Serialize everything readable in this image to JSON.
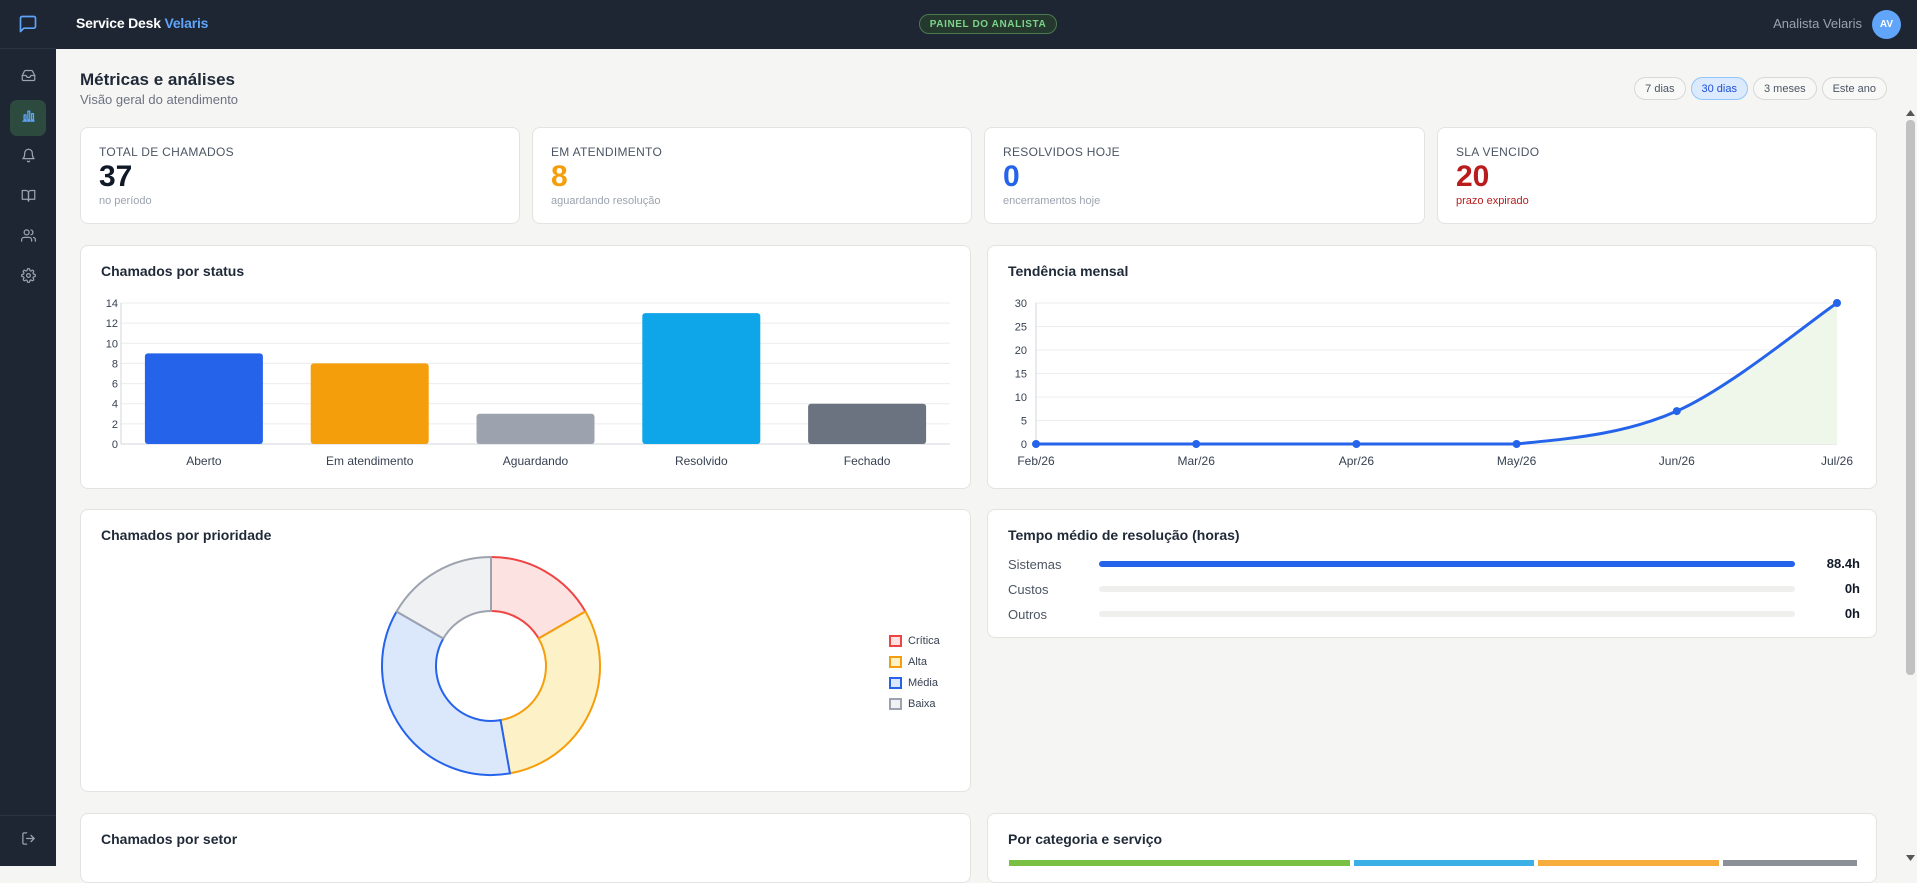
{
  "app": {
    "brand_main": "Service Desk",
    "brand_accent": "Velaris",
    "role_badge": "PAINEL DO ANALISTA",
    "user_name": "Analista Velaris",
    "user_initials": "AV"
  },
  "sidebar": {
    "items": [
      {
        "icon": "inbox-icon"
      },
      {
        "icon": "bar-chart-icon",
        "active": true
      },
      {
        "icon": "bell-icon"
      },
      {
        "icon": "book-icon"
      },
      {
        "icon": "users-icon"
      },
      {
        "icon": "gear-icon"
      }
    ],
    "bottom_icon": "logout-icon"
  },
  "page": {
    "title": "Métricas e análises",
    "subtitle": "Visão geral do atendimento"
  },
  "ranges": [
    {
      "label": "7 dias",
      "active": false
    },
    {
      "label": "30 dias",
      "active": true
    },
    {
      "label": "3 meses",
      "active": false
    },
    {
      "label": "Este ano",
      "active": false
    }
  ],
  "stats": [
    {
      "label": "TOTAL DE CHAMADOS",
      "value": "37",
      "sub": "no período",
      "color": "#111827",
      "sub_color": "#9ca3af"
    },
    {
      "label": "EM ATENDIMENTO",
      "value": "8",
      "sub": "aguardando resolução",
      "color": "#f59e0b",
      "sub_color": "#9ca3af"
    },
    {
      "label": "RESOLVIDOS HOJE",
      "value": "0",
      "sub": "encerramentos hoje",
      "color": "#2563eb",
      "sub_color": "#9ca3af"
    },
    {
      "label": "SLA VENCIDO",
      "value": "20",
      "sub": "prazo expirado",
      "color": "#b91c1c",
      "sub_color": "#b91c1c"
    }
  ],
  "cards": {
    "status_title": "Chamados por status",
    "trend_title": "Tendência mensal",
    "priority_title": "Chamados por prioridade",
    "resolution_title": "Tempo médio de resolução (horas)",
    "sector_title": "Chamados por setor",
    "category_title": "Por categoria e serviço"
  },
  "resolution": [
    {
      "label": "Sistemas",
      "value": "88.4h",
      "fraction": 1.0
    },
    {
      "label": "Custos",
      "value": "0h",
      "fraction": 0
    },
    {
      "label": "Outros",
      "value": "0h",
      "fraction": 0
    }
  ],
  "category_strip_colors": [
    "#7ac143",
    "#3bb0e6",
    "#f6ad3c",
    "#8a8f98"
  ],
  "chart_data": [
    {
      "type": "bar",
      "title": "Chamados por status",
      "categories": [
        "Aberto",
        "Em atendimento",
        "Aguardando",
        "Resolvido",
        "Fechado"
      ],
      "values": [
        9,
        8,
        3,
        13,
        4
      ],
      "colors": [
        "#2563eb",
        "#f59e0b",
        "#9ca3af",
        "#0ea5e9",
        "#6b7280"
      ],
      "yticks": [
        "0",
        "2",
        "4",
        "6",
        "8",
        "10",
        "12",
        "14"
      ],
      "ylim": [
        0,
        14
      ],
      "grid": true
    },
    {
      "type": "line",
      "title": "Tendência mensal",
      "x": [
        "Feb/26",
        "Mar/26",
        "Apr/26",
        "May/26",
        "Jun/26",
        "Jul/26"
      ],
      "values": [
        0,
        0,
        0,
        0,
        7,
        30
      ],
      "color": "#2563eb",
      "fill": "#eef7ea",
      "yticks": [
        "0",
        "5",
        "10",
        "15",
        "20",
        "25",
        "30"
      ],
      "ylim": [
        0,
        30
      ],
      "grid": true
    },
    {
      "type": "pie",
      "title": "Chamados por prioridade",
      "labels": [
        "Crítica",
        "Alta",
        "Média",
        "Baixa"
      ],
      "values": [
        6,
        11,
        13,
        6
      ],
      "stroke_colors": [
        "#ef4444",
        "#f59e0b",
        "#2563eb",
        "#9ca3af"
      ],
      "fill_colors": [
        "#fde2e2",
        "#fdf1c7",
        "#dbe8fc",
        "#f0f1f3"
      ],
      "legend": "right"
    }
  ]
}
